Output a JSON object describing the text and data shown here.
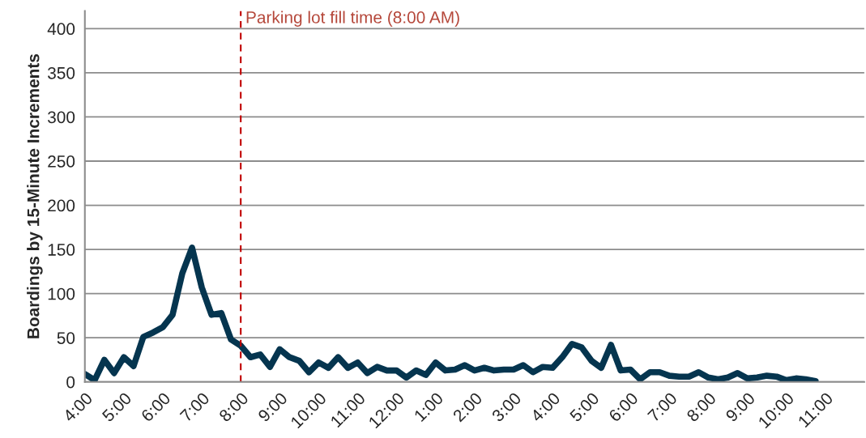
{
  "chart_data": {
    "type": "line",
    "ylabel": "Boardings by 15-Minute Increments",
    "categories": [
      "4:00",
      null,
      null,
      null,
      "5:00",
      null,
      null,
      null,
      "6:00",
      null,
      null,
      null,
      "7:00",
      null,
      null,
      null,
      "8:00",
      null,
      null,
      null,
      "9:00",
      null,
      null,
      null,
      "10:00",
      null,
      null,
      null,
      "11:00",
      null,
      null,
      null,
      "12:00",
      null,
      null,
      null,
      "1:00",
      null,
      null,
      null,
      "2:00",
      null,
      null,
      null,
      "3:00",
      null,
      null,
      null,
      "4:00",
      null,
      null,
      null,
      "5:00",
      null,
      null,
      null,
      "6:00",
      null,
      null,
      null,
      "7:00",
      null,
      null,
      null,
      "8:00",
      null,
      null,
      null,
      "9:00",
      null,
      null,
      null,
      "10:00",
      null,
      null,
      null,
      "11:00",
      null,
      null,
      null
    ],
    "series": [
      {
        "color": "#05354f",
        "values": [
          9,
          2,
          25,
          10,
          28,
          18,
          51,
          56,
          62,
          76,
          123,
          152,
          107,
          76,
          78,
          48,
          41,
          28,
          31,
          17,
          37,
          28,
          24,
          11,
          22,
          16,
          28,
          16,
          22,
          10,
          17,
          13,
          13,
          5,
          13,
          8,
          22,
          13,
          14,
          19,
          13,
          16,
          13,
          14,
          14,
          19,
          11,
          17,
          16,
          28,
          43,
          39,
          24,
          16,
          42,
          13,
          14,
          3,
          11,
          11,
          7,
          6,
          6,
          11,
          5,
          3,
          5,
          10,
          4,
          5,
          7,
          6,
          2,
          4,
          3,
          1,
          null,
          null,
          null,
          null
        ]
      }
    ],
    "ylim": [
      0,
      420
    ],
    "yticks": [
      0,
      50,
      100,
      150,
      200,
      250,
      300,
      350,
      400
    ],
    "grid": "y",
    "legend": false,
    "marker": "none",
    "line_style": "solid",
    "ref_lines": [
      {
        "axis": "x",
        "value": "8:00",
        "label": "Parking lot fill time (8:00 AM)",
        "color": "#c00000",
        "line_style": "dashed"
      }
    ]
  }
}
